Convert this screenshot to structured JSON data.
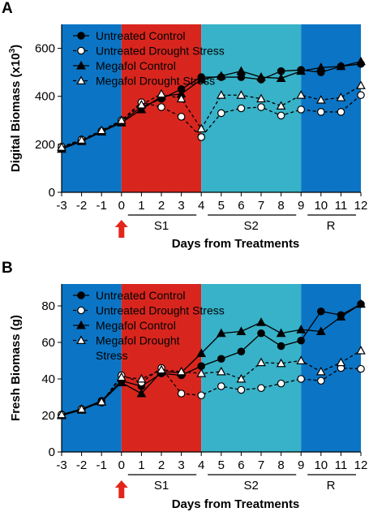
{
  "chart_data": [
    {
      "panel_label": "A",
      "type": "line",
      "ylabel": "Digital Biomass (x10",
      "ylabel_superscript": "3",
      "ylabel_suffix": ")",
      "xlabel": "Days from Treatments",
      "xlim": [
        -3,
        12
      ],
      "ylim": [
        0,
        700
      ],
      "yticks": [
        0,
        200,
        400,
        600
      ],
      "xticks": [
        -3,
        -2,
        -1,
        0,
        1,
        2,
        3,
        4,
        5,
        6,
        7,
        8,
        9,
        10,
        11,
        12
      ],
      "phases": [
        {
          "label": "",
          "from": -3,
          "to": 0,
          "color": "#0b74c4"
        },
        {
          "label": "S1",
          "from": 0,
          "to": 4,
          "color": "#d8261e"
        },
        {
          "label": "S2",
          "from": 4,
          "to": 9,
          "color": "#37b2c8"
        },
        {
          "label": "R",
          "from": 9,
          "to": 12,
          "color": "#0b74c4"
        }
      ],
      "treatment_marker_x": 0,
      "series": [
        {
          "name": "Untreated Control",
          "marker": "circle-filled",
          "dashed": false,
          "x": [
            -3,
            -2,
            -1,
            0,
            1,
            2,
            3,
            4,
            5,
            6,
            7,
            8,
            9,
            10,
            11,
            12
          ],
          "y": [
            185,
            215,
            255,
            295,
            355,
            390,
            430,
            480,
            480,
            480,
            470,
            505,
            510,
            500,
            525,
            535
          ]
        },
        {
          "name": "Untreated Drought Stress",
          "marker": "circle-open",
          "dashed": true,
          "x": [
            -3,
            -2,
            -1,
            0,
            1,
            2,
            3,
            4,
            5,
            6,
            7,
            8,
            9,
            10,
            11,
            12
          ],
          "y": [
            190,
            220,
            255,
            300,
            375,
            355,
            315,
            230,
            330,
            350,
            355,
            320,
            345,
            335,
            335,
            405
          ]
        },
        {
          "name": "Megafol Control",
          "marker": "triangle-filled",
          "dashed": false,
          "x": [
            -3,
            -2,
            -1,
            0,
            1,
            2,
            3,
            4,
            5,
            6,
            7,
            8,
            9,
            10,
            11,
            12
          ],
          "y": [
            180,
            212,
            252,
            290,
            345,
            400,
            410,
            470,
            485,
            505,
            480,
            475,
            505,
            520,
            525,
            545
          ]
        },
        {
          "name": "Megafol Drought Stress",
          "marker": "triangle-open",
          "dashed": true,
          "x": [
            -3,
            -2,
            -1,
            0,
            1,
            2,
            3,
            4,
            5,
            6,
            7,
            8,
            9,
            10,
            11,
            12
          ],
          "y": [
            188,
            218,
            258,
            300,
            365,
            410,
            390,
            265,
            405,
            405,
            390,
            360,
            405,
            385,
            395,
            445
          ]
        }
      ]
    },
    {
      "panel_label": "B",
      "type": "line",
      "ylabel": "Fresh Biomass (g)",
      "xlabel": "Days from Treatments",
      "xlim": [
        -3,
        12
      ],
      "ylim": [
        0,
        92
      ],
      "yticks": [
        0,
        20,
        40,
        60,
        80
      ],
      "xticks": [
        -3,
        -2,
        -1,
        0,
        1,
        2,
        3,
        4,
        5,
        6,
        7,
        8,
        9,
        10,
        11,
        12
      ],
      "phases": [
        {
          "label": "",
          "from": -3,
          "to": 0,
          "color": "#0b74c4"
        },
        {
          "label": "S1",
          "from": 0,
          "to": 4,
          "color": "#d8261e"
        },
        {
          "label": "S2",
          "from": 4,
          "to": 9,
          "color": "#37b2c8"
        },
        {
          "label": "R",
          "from": 9,
          "to": 12,
          "color": "#0b74c4"
        }
      ],
      "treatment_marker_x": 0,
      "series": [
        {
          "name": "Untreated Control",
          "marker": "circle-filled",
          "dashed": false,
          "x": [
            -3,
            -2,
            -1,
            0,
            1,
            2,
            3,
            4,
            5,
            6,
            7,
            8,
            9,
            10,
            11,
            12
          ],
          "y": [
            20.5,
            23.5,
            28,
            39,
            36,
            43,
            42,
            47,
            51,
            55,
            65,
            58,
            61,
            77,
            75,
            81
          ]
        },
        {
          "name": "Untreated Drought Stress",
          "marker": "circle-open",
          "dashed": true,
          "x": [
            -3,
            -2,
            -1,
            0,
            1,
            2,
            3,
            4,
            5,
            6,
            7,
            8,
            9,
            10,
            11,
            12
          ],
          "y": [
            20.5,
            23.5,
            27,
            42,
            38,
            46,
            32,
            31,
            36,
            34,
            35,
            37.5,
            40,
            39,
            46,
            45.5
          ]
        },
        {
          "name": "Megafol Control",
          "marker": "triangle-filled",
          "dashed": false,
          "x": [
            -3,
            -2,
            -1,
            0,
            1,
            2,
            3,
            4,
            5,
            6,
            7,
            8,
            9,
            10,
            11,
            12
          ],
          "y": [
            20,
            23,
            27.5,
            38,
            32,
            44,
            43.5,
            54,
            65,
            66,
            71,
            65,
            67,
            66,
            74,
            81
          ]
        },
        {
          "name": "Megafol Drought Stress",
          "marker": "triangle-open",
          "dashed": true,
          "x": [
            -3,
            -2,
            -1,
            0,
            1,
            2,
            3,
            4,
            5,
            6,
            7,
            8,
            9,
            10,
            11,
            12
          ],
          "y": [
            20.5,
            23.5,
            27.5,
            41,
            40,
            45,
            44,
            43,
            44,
            40,
            49,
            48.5,
            50,
            44,
            49,
            55.5
          ]
        }
      ],
      "legend_entries": [
        "Untreated Control",
        "Untreated Drought Stress",
        "Megafol Control",
        "Megafol Drought",
        "Stress"
      ]
    }
  ]
}
